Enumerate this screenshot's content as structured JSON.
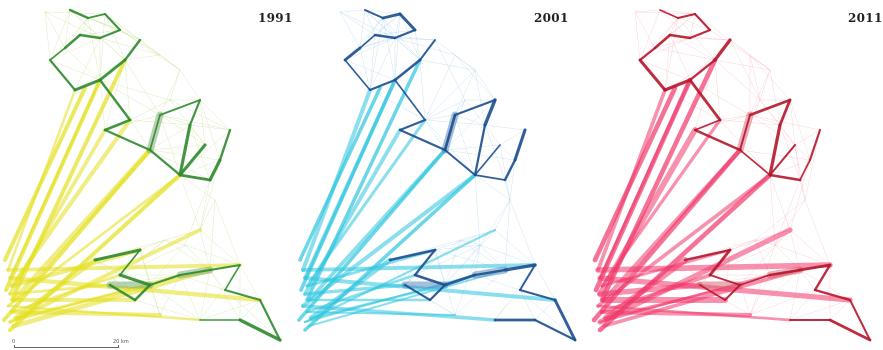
{
  "panels": [
    {
      "id": "panel-1",
      "year": "1991",
      "colors": {
        "primary": "#e3df1c",
        "dark": "#2f8a2f",
        "light": "#b9d36f",
        "hub": "#6fa86a"
      }
    },
    {
      "id": "panel-2",
      "year": "2001",
      "colors": {
        "primary": "#2cc4de",
        "dark": "#1c4e8f",
        "light": "#8fc3e4",
        "hub": "#4a82b8"
      }
    },
    {
      "id": "panel-3",
      "year": "2011",
      "colors": {
        "primary": "#f0366a",
        "dark": "#b5162b",
        "light": "#f2a0ab",
        "hub": "#d56070"
      }
    }
  ],
  "scale": {
    "start_label": "0",
    "end_label": "20 km"
  }
}
